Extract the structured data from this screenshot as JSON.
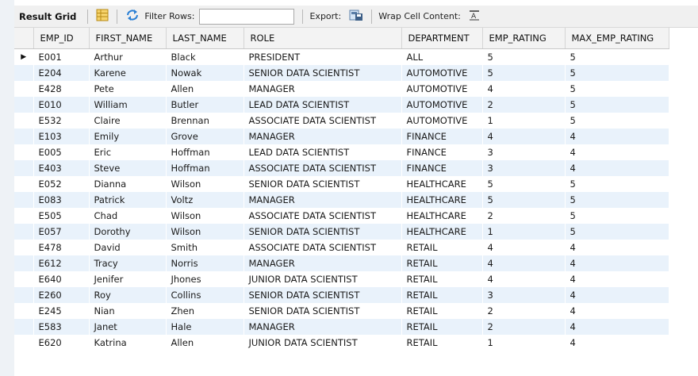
{
  "toolbar": {
    "result_grid_label": "Result Grid",
    "filter_rows_label": "Filter Rows:",
    "filter_value": "",
    "export_label": "Export:",
    "wrap_label": "Wrap Cell Content:"
  },
  "columns": [
    "EMP_ID",
    "FIRST_NAME",
    "LAST_NAME",
    "ROLE",
    "DEPARTMENT",
    "EMP_RATING",
    "MAX_EMP_RATING"
  ],
  "rows": [
    [
      "E001",
      "Arthur",
      "Black",
      "PRESIDENT",
      "ALL",
      "5",
      "5"
    ],
    [
      "E204",
      "Karene",
      "Nowak",
      "SENIOR DATA SCIENTIST",
      "AUTOMOTIVE",
      "5",
      "5"
    ],
    [
      "E428",
      "Pete",
      "Allen",
      "MANAGER",
      "AUTOMOTIVE",
      "4",
      "5"
    ],
    [
      "E010",
      "William",
      "Butler",
      "LEAD DATA SCIENTIST",
      "AUTOMOTIVE",
      "2",
      "5"
    ],
    [
      "E532",
      "Claire",
      "Brennan",
      "ASSOCIATE DATA SCIENTIST",
      "AUTOMOTIVE",
      "1",
      "5"
    ],
    [
      "E103",
      "Emily",
      "Grove",
      "MANAGER",
      "FINANCE",
      "4",
      "4"
    ],
    [
      "E005",
      "Eric",
      "Hoffman",
      "LEAD DATA SCIENTIST",
      "FINANCE",
      "3",
      "4"
    ],
    [
      "E403",
      "Steve",
      "Hoffman",
      "ASSOCIATE DATA SCIENTIST",
      "FINANCE",
      "3",
      "4"
    ],
    [
      "E052",
      "Dianna",
      "Wilson",
      "SENIOR DATA SCIENTIST",
      "HEALTHCARE",
      "5",
      "5"
    ],
    [
      "E083",
      "Patrick",
      "Voltz",
      "MANAGER",
      "HEALTHCARE",
      "5",
      "5"
    ],
    [
      "E505",
      "Chad",
      "Wilson",
      "ASSOCIATE DATA SCIENTIST",
      "HEALTHCARE",
      "2",
      "5"
    ],
    [
      "E057",
      "Dorothy",
      "Wilson",
      "SENIOR DATA SCIENTIST",
      "HEALTHCARE",
      "1",
      "5"
    ],
    [
      "E478",
      "David",
      "Smith",
      "ASSOCIATE DATA SCIENTIST",
      "RETAIL",
      "4",
      "4"
    ],
    [
      "E612",
      "Tracy",
      "Norris",
      "MANAGER",
      "RETAIL",
      "4",
      "4"
    ],
    [
      "E640",
      "Jenifer",
      "Jhones",
      "JUNIOR DATA SCIENTIST",
      "RETAIL",
      "4",
      "4"
    ],
    [
      "E260",
      "Roy",
      "Collins",
      "SENIOR DATA SCIENTIST",
      "RETAIL",
      "3",
      "4"
    ],
    [
      "E245",
      "Nian",
      "Zhen",
      "SENIOR DATA SCIENTIST",
      "RETAIL",
      "2",
      "4"
    ],
    [
      "E583",
      "Janet",
      "Hale",
      "MANAGER",
      "RETAIL",
      "2",
      "4"
    ],
    [
      "E620",
      "Katrina",
      "Allen",
      "JUNIOR DATA SCIENTIST",
      "RETAIL",
      "1",
      "4"
    ]
  ],
  "current_row_marker": "▶",
  "colors": {
    "stripe": "#e9f2fb",
    "header_bg": "#f3f3f3",
    "toolbar_bg": "#f0f0f0",
    "refresh_icon": "#2a7fd4"
  }
}
